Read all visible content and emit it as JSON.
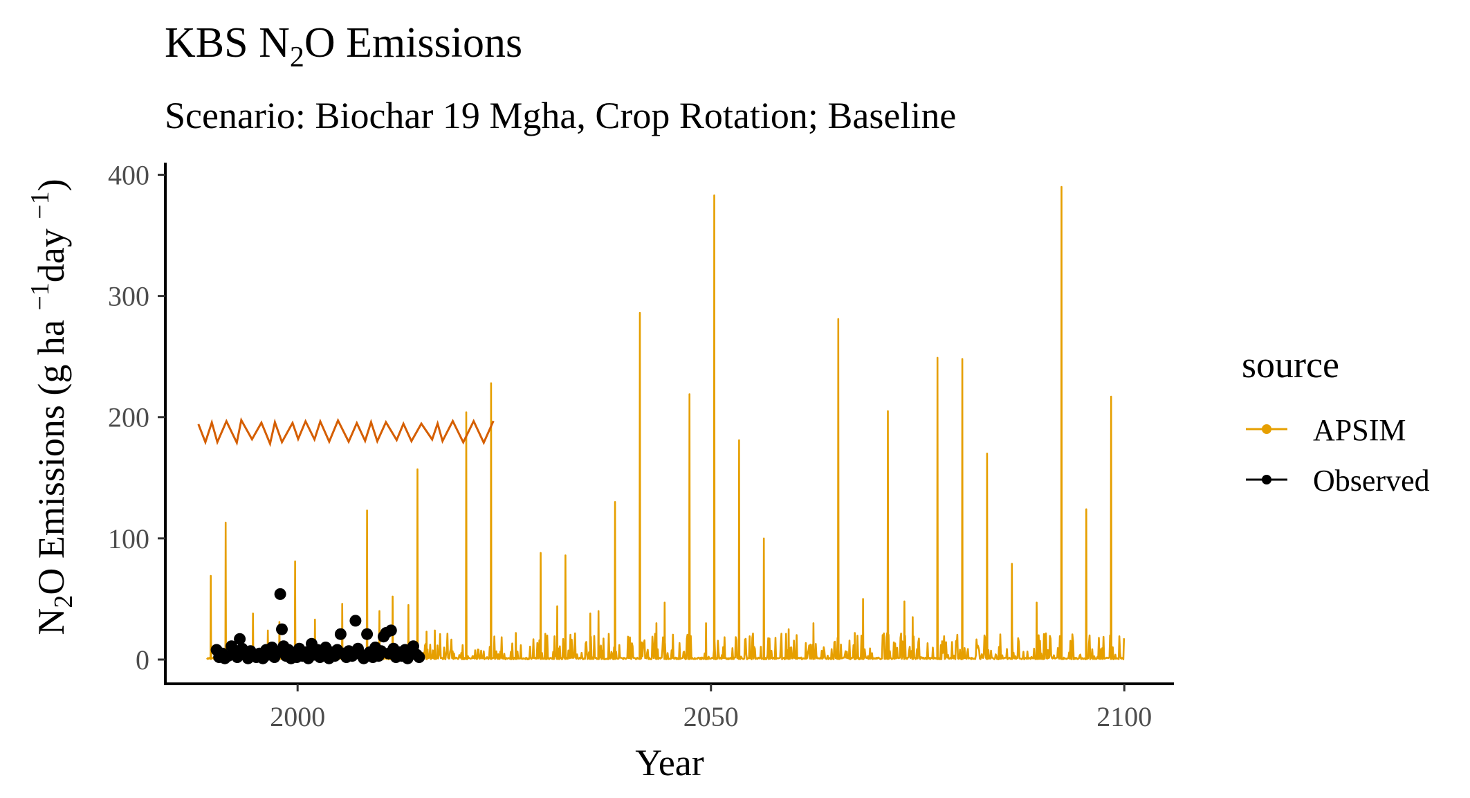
{
  "chart_data": {
    "type": "line",
    "title": "KBS N₂O Emissions",
    "title_parts": {
      "pre": "KBS N",
      "sub": "2",
      "post": "O Emissions"
    },
    "subtitle": "Scenario: Biochar 19 Mgha, Crop Rotation; Baseline",
    "xlabel": "Year",
    "ylabel": "N₂O Emissions (g ha ⁻¹day ⁻¹)",
    "ylabel_parts": {
      "a": "N",
      "sub": "2",
      "b": "O Emissions (g ha ",
      "sup1": "−1",
      "c": "day ",
      "sup2": "−1",
      "d": ")"
    },
    "xlim": [
      1984,
      2106
    ],
    "ylim": [
      -20,
      410
    ],
    "x_ticks": [
      {
        "value": 2000,
        "label": "2000"
      },
      {
        "value": 2050,
        "label": "2050"
      },
      {
        "value": 2100,
        "label": "2100"
      }
    ],
    "y_ticks": [
      {
        "value": 0,
        "label": "0"
      },
      {
        "value": 100,
        "label": "100"
      },
      {
        "value": 200,
        "label": "200"
      },
      {
        "value": 300,
        "label": "300"
      },
      {
        "value": 400,
        "label": "400"
      }
    ],
    "grid": false,
    "legend": {
      "title": "source",
      "position": "right",
      "entries": [
        {
          "name": "APSIM",
          "color": "#E69F00"
        },
        {
          "name": "Observed",
          "color": "#000000"
        }
      ]
    },
    "series": [
      {
        "name": "APSIM",
        "kind": "line",
        "color": "#E69F00",
        "x_range": [
          1989,
          2100
        ],
        "peaks": [
          {
            "x": 1989.5,
            "y": 69
          },
          {
            "x": 1991.3,
            "y": 113
          },
          {
            "x": 1994.6,
            "y": 38
          },
          {
            "x": 1996.4,
            "y": 24
          },
          {
            "x": 1997.8,
            "y": 31
          },
          {
            "x": 1999.7,
            "y": 81
          },
          {
            "x": 2002.1,
            "y": 33
          },
          {
            "x": 2005.4,
            "y": 46
          },
          {
            "x": 2008.4,
            "y": 123
          },
          {
            "x": 2009.9,
            "y": 40
          },
          {
            "x": 2011.5,
            "y": 52
          },
          {
            "x": 2013.4,
            "y": 45
          },
          {
            "x": 2014.5,
            "y": 157
          },
          {
            "x": 2015.6,
            "y": 23
          },
          {
            "x": 2016.6,
            "y": 24
          },
          {
            "x": 2020.4,
            "y": 204
          },
          {
            "x": 2023.4,
            "y": 228
          },
          {
            "x": 2026.4,
            "y": 22
          },
          {
            "x": 2029.4,
            "y": 88
          },
          {
            "x": 2031.4,
            "y": 44
          },
          {
            "x": 2032.4,
            "y": 86
          },
          {
            "x": 2035.4,
            "y": 38
          },
          {
            "x": 2036.4,
            "y": 40
          },
          {
            "x": 2038.4,
            "y": 130
          },
          {
            "x": 2041.4,
            "y": 286
          },
          {
            "x": 2043.4,
            "y": 30
          },
          {
            "x": 2044.4,
            "y": 47
          },
          {
            "x": 2047.4,
            "y": 219
          },
          {
            "x": 2049.4,
            "y": 30
          },
          {
            "x": 2050.4,
            "y": 383
          },
          {
            "x": 2053.4,
            "y": 181
          },
          {
            "x": 2056.4,
            "y": 100
          },
          {
            "x": 2059.4,
            "y": 25
          },
          {
            "x": 2062.4,
            "y": 30
          },
          {
            "x": 2065.4,
            "y": 281
          },
          {
            "x": 2067.4,
            "y": 22
          },
          {
            "x": 2068.4,
            "y": 50
          },
          {
            "x": 2071.4,
            "y": 205
          },
          {
            "x": 2073.4,
            "y": 48
          },
          {
            "x": 2074.4,
            "y": 35
          },
          {
            "x": 2077.4,
            "y": 249
          },
          {
            "x": 2080.4,
            "y": 248
          },
          {
            "x": 2083.4,
            "y": 170
          },
          {
            "x": 2086.4,
            "y": 79
          },
          {
            "x": 2089.4,
            "y": 47
          },
          {
            "x": 2092.4,
            "y": 390
          },
          {
            "x": 2095.4,
            "y": 124
          },
          {
            "x": 2098.4,
            "y": 217
          }
        ]
      },
      {
        "name": "Observed",
        "kind": "point",
        "color": "#000000",
        "points": [
          [
            1990.2,
            8
          ],
          [
            1990.5,
            2
          ],
          [
            1990.9,
            5
          ],
          [
            1991.2,
            1
          ],
          [
            1991.6,
            3
          ],
          [
            1992.0,
            11
          ],
          [
            1992.3,
            6
          ],
          [
            1992.7,
            2
          ],
          [
            1993.0,
            17
          ],
          [
            1993.3,
            9
          ],
          [
            1993.6,
            4
          ],
          [
            1994.0,
            1
          ],
          [
            1994.3,
            7
          ],
          [
            1994.7,
            3
          ],
          [
            1995.0,
            2
          ],
          [
            1995.4,
            5
          ],
          [
            1995.8,
            1
          ],
          [
            1996.2,
            8
          ],
          [
            1996.5,
            4
          ],
          [
            1996.9,
            10
          ],
          [
            1997.2,
            2
          ],
          [
            1997.6,
            6
          ],
          [
            1997.9,
            54
          ],
          [
            1998.1,
            25
          ],
          [
            1998.3,
            11
          ],
          [
            1998.6,
            3
          ],
          [
            1998.9,
            8
          ],
          [
            1999.2,
            1
          ],
          [
            1999.5,
            5
          ],
          [
            1999.9,
            2
          ],
          [
            2000.2,
            9
          ],
          [
            2000.6,
            3
          ],
          [
            2001.0,
            6
          ],
          [
            2001.3,
            1
          ],
          [
            2001.7,
            13
          ],
          [
            2002.0,
            4
          ],
          [
            2002.4,
            8
          ],
          [
            2002.7,
            2
          ],
          [
            2003.1,
            5
          ],
          [
            2003.4,
            10
          ],
          [
            2003.8,
            1
          ],
          [
            2004.1,
            6
          ],
          [
            2004.5,
            3
          ],
          [
            2004.8,
            8
          ],
          [
            2005.2,
            21
          ],
          [
            2005.5,
            5
          ],
          [
            2005.9,
            2
          ],
          [
            2006.2,
            7
          ],
          [
            2006.6,
            3
          ],
          [
            2007.0,
            32
          ],
          [
            2007.3,
            9
          ],
          [
            2007.7,
            4
          ],
          [
            2008.0,
            1
          ],
          [
            2008.4,
            21
          ],
          [
            2008.7,
            6
          ],
          [
            2009.1,
            2
          ],
          [
            2009.4,
            10
          ],
          [
            2009.8,
            3
          ],
          [
            2010.1,
            7
          ],
          [
            2010.4,
            19
          ],
          [
            2010.7,
            22
          ],
          [
            2011.0,
            5
          ],
          [
            2011.3,
            24
          ],
          [
            2011.6,
            9
          ],
          [
            2011.9,
            2
          ],
          [
            2012.3,
            6
          ],
          [
            2012.6,
            3
          ],
          [
            2013.0,
            8
          ],
          [
            2013.3,
            1
          ],
          [
            2013.7,
            5
          ],
          [
            2014.0,
            11
          ],
          [
            2014.4,
            4
          ],
          [
            2014.7,
            2
          ]
        ]
      },
      {
        "name": "",
        "kind": "line",
        "color": "#D55E00",
        "x_range": [
          1988,
          2024
        ],
        "y_range": [
          178,
          198
        ]
      }
    ]
  }
}
